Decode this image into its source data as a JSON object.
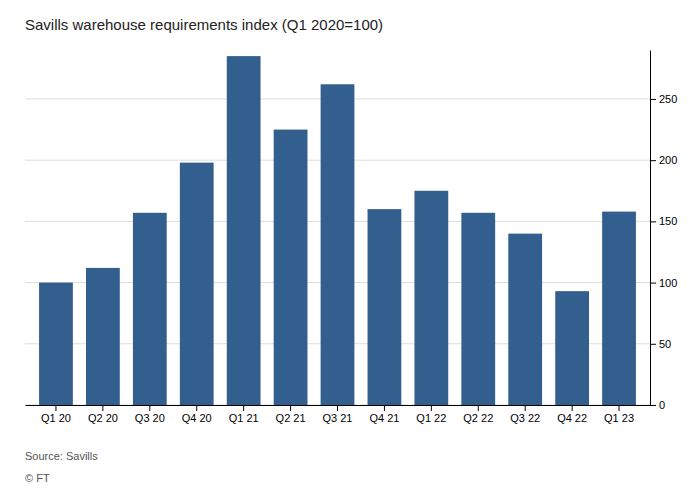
{
  "chart_data": {
    "type": "bar",
    "title": "Savills warehouse requirements index (Q1 2020=100)",
    "categories": [
      "Q1 20",
      "Q2 20",
      "Q3 20",
      "Q4 20",
      "Q1 21",
      "Q2 21",
      "Q3 21",
      "Q4 21",
      "Q1 22",
      "Q2 22",
      "Q3 22",
      "Q4 22",
      "Q1 23"
    ],
    "values": [
      100,
      112,
      157,
      198,
      285,
      225,
      262,
      160,
      175,
      157,
      140,
      93,
      158
    ],
    "color": "#335f8e",
    "ylim": [
      0,
      290
    ],
    "yticks": [
      0,
      50,
      100,
      150,
      200,
      250
    ],
    "grid": true,
    "annotations": [
      "Source: Savills",
      "© FT"
    ]
  }
}
